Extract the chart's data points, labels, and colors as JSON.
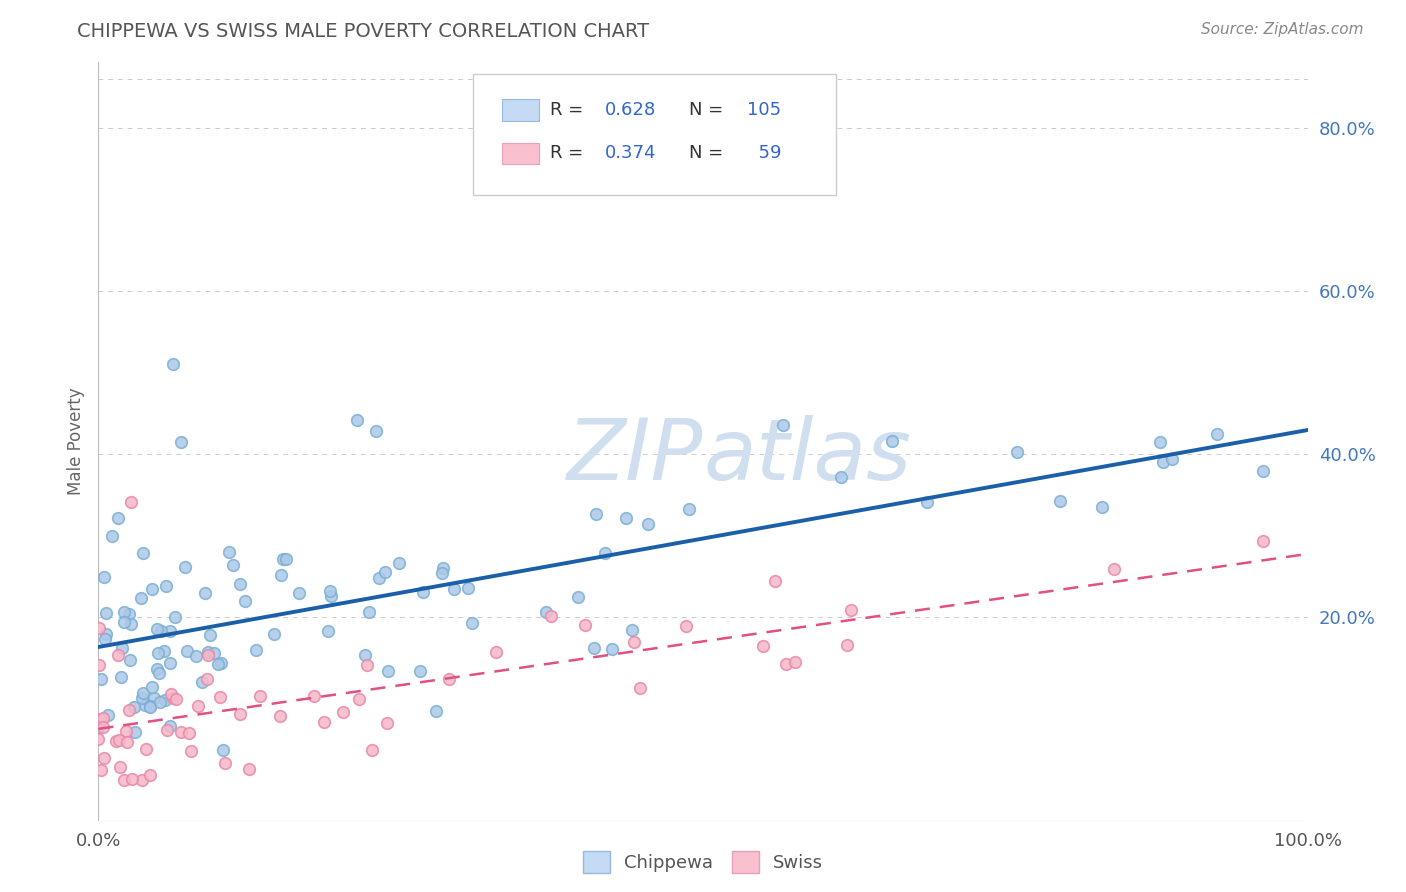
{
  "title": "CHIPPEWA VS SWISS MALE POVERTY CORRELATION CHART",
  "source_text": "Source: ZipAtlas.com",
  "ylabel": "Male Poverty",
  "chippewa_R": 0.628,
  "chippewa_N": 105,
  "swiss_R": 0.374,
  "swiss_N": 59,
  "chippewa_color_face": "#adc8e8",
  "chippewa_color_edge": "#7aafd4",
  "swiss_color_face": "#f5b8c8",
  "swiss_color_edge": "#e888a8",
  "chippewa_line_color": "#1a5fa8",
  "swiss_line_color": "#e05080",
  "legend_blue_fill": "#c5daf5",
  "legend_pink_fill": "#f9c0d0",
  "watermark_color": "#d0dff0",
  "chippewa_line_start_y": 0.155,
  "chippewa_line_end_y": 0.405,
  "swiss_line_start_y": 0.048,
  "swiss_line_end_y": 0.295,
  "xlim": [
    0.0,
    1.0
  ],
  "ylim": [
    -0.05,
    0.88
  ],
  "y_ticks": [
    0.2,
    0.4,
    0.6,
    0.8
  ],
  "x_ticks": [
    0.0,
    1.0
  ],
  "bg_color": "#ffffff"
}
